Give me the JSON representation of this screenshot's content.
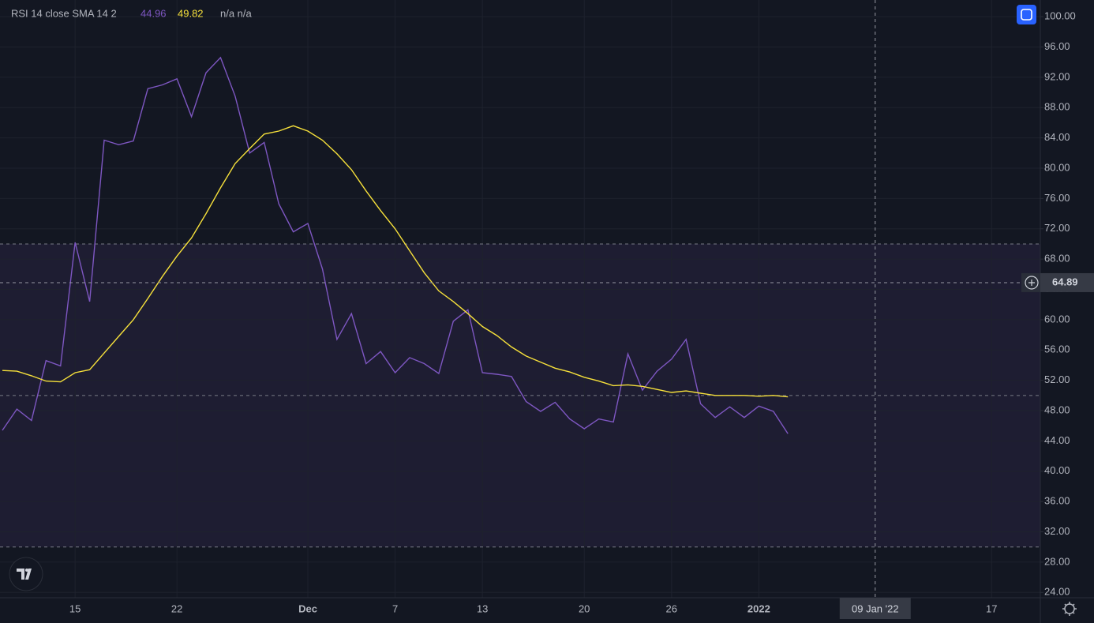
{
  "chart_data": {
    "type": "line",
    "title": "RSI 14 close SMA 14 2",
    "status": "n/a n/a",
    "categories": [
      null,
      null,
      null,
      null,
      null,
      "15",
      null,
      null,
      null,
      null,
      null,
      null,
      "22",
      null,
      null,
      null,
      null,
      null,
      null,
      null,
      null,
      "Dec",
      null,
      null,
      null,
      null,
      null,
      "7",
      null,
      null,
      null,
      null,
      null,
      "13",
      null,
      null,
      null,
      null,
      null,
      null,
      "20",
      null,
      null,
      null,
      null,
      null,
      "26",
      null,
      null,
      null,
      null,
      null,
      "2022",
      null,
      null,
      null,
      null,
      null,
      null,
      null,
      "09 Jan '22",
      null,
      null,
      null,
      null,
      null,
      null,
      null,
      "17",
      null,
      null,
      null
    ],
    "series": [
      {
        "color": "#7e57c2",
        "values": [
          45.4,
          48.2,
          46.7,
          54.6,
          53.9,
          70.2,
          62.4,
          83.7,
          83.1,
          83.6,
          90.5,
          91.0,
          91.8,
          86.8,
          92.6,
          94.6,
          89.5,
          82.0,
          83.4,
          75.3,
          71.6,
          72.7,
          66.7,
          57.4,
          60.8,
          54.2,
          55.8,
          53.0,
          55.0,
          54.2,
          52.9,
          59.8,
          61.3,
          53.0,
          52.8,
          52.5,
          49.2,
          47.9,
          49.1,
          46.9,
          45.6,
          46.9,
          46.5,
          55.5,
          50.7,
          53.2,
          54.8,
          57.4,
          48.9,
          47.1,
          48.5,
          47.1,
          48.6,
          47.9,
          44.96,
          null,
          null,
          null,
          null,
          null,
          null,
          null,
          null,
          null,
          null,
          null,
          null,
          null,
          null,
          null,
          null,
          null
        ]
      },
      {
        "color": "#f7e13b",
        "values": [
          53.3,
          53.2,
          52.6,
          51.9,
          51.8,
          53.0,
          53.4,
          55.6,
          57.8,
          60.0,
          62.8,
          65.7,
          68.4,
          70.8,
          74.0,
          77.4,
          80.6,
          82.6,
          84.5,
          84.9,
          85.6,
          84.9,
          83.7,
          81.9,
          79.8,
          77.0,
          74.4,
          72.0,
          69.1,
          66.2,
          63.8,
          62.4,
          60.8,
          59.1,
          57.9,
          56.4,
          55.2,
          54.4,
          53.6,
          53.1,
          52.4,
          51.9,
          51.3,
          51.4,
          51.2,
          50.8,
          50.4,
          50.6,
          50.3,
          50.0,
          50.0,
          50.0,
          49.9,
          50.0,
          49.82,
          null,
          null,
          null,
          null,
          null,
          null,
          null,
          null,
          null,
          null,
          null,
          null,
          null,
          null,
          null,
          null,
          null
        ]
      }
    ],
    "ylim": [
      23.3,
      102.2
    ],
    "yticks": [
      {
        "value": 24,
        "label": "24.00"
      },
      {
        "value": 28,
        "label": "28.00"
      },
      {
        "value": 32,
        "label": "32.00"
      },
      {
        "value": 36,
        "label": "36.00"
      },
      {
        "value": 40,
        "label": "40.00"
      },
      {
        "value": 44,
        "label": "44.00"
      },
      {
        "value": 48,
        "label": "48.00"
      },
      {
        "value": 52,
        "label": "52.00"
      },
      {
        "value": 56,
        "label": "56.00"
      },
      {
        "value": 60,
        "label": "60.00"
      },
      {
        "value": 64,
        "label": "64.00"
      },
      {
        "value": 68,
        "label": "68.00"
      },
      {
        "value": 72,
        "label": "72.00"
      },
      {
        "value": 76,
        "label": "76.00"
      },
      {
        "value": 80,
        "label": "80.00"
      },
      {
        "value": 84,
        "label": "84.00"
      },
      {
        "value": 88,
        "label": "88.00"
      },
      {
        "value": 92,
        "label": "92.00"
      },
      {
        "value": 96,
        "label": "96.00"
      },
      {
        "value": 100,
        "label": "100.00"
      }
    ],
    "levels": [
      70,
      50,
      30
    ],
    "crosshair": {
      "y": 64.89
    },
    "grid": true
  }
}
